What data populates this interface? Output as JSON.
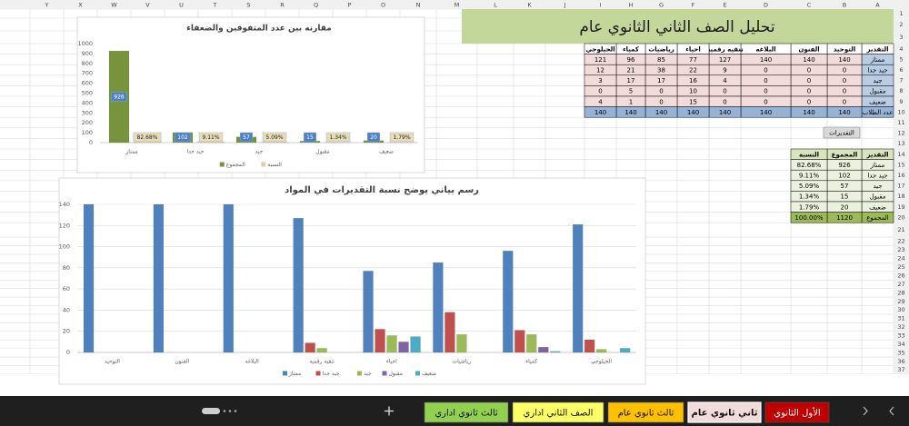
{
  "column_letters": [
    "A",
    "B",
    "C",
    "D",
    "E",
    "F",
    "G",
    "H",
    "I",
    "J",
    "K",
    "L",
    "M",
    "N",
    "O",
    "P",
    "Q",
    "R",
    "S",
    "T",
    "U",
    "V",
    "W",
    "X",
    "Y"
  ],
  "row_numbers": [
    1,
    2,
    3,
    4,
    5,
    6,
    7,
    8,
    9,
    10,
    11,
    12,
    13,
    14,
    15,
    16,
    17,
    18,
    19,
    20,
    21,
    22,
    23,
    24,
    25,
    26,
    27,
    28,
    29,
    30,
    31,
    32,
    33,
    34,
    35,
    36,
    37
  ],
  "title": "تحليل الصف الثاني الثانوي عام",
  "main_table": {
    "header": [
      "التقدير",
      "التوحيد",
      "الفنون",
      "البلاغه",
      "تنقيه رقميه",
      "احياء",
      "رياضيات",
      "كمياء",
      "الجيلوجي"
    ],
    "rows": [
      [
        "ممتاز",
        140,
        140,
        140,
        127,
        77,
        85,
        96,
        121
      ],
      [
        "جيد جدا",
        0,
        0,
        0,
        9,
        22,
        38,
        21,
        12
      ],
      [
        "جيد",
        0,
        0,
        0,
        4,
        16,
        17,
        17,
        3
      ],
      [
        "مقبول",
        0,
        0,
        0,
        0,
        10,
        0,
        5,
        0
      ],
      [
        "ضعيف",
        0,
        0,
        0,
        0,
        15,
        0,
        1,
        4
      ],
      [
        "عدد الطلاب",
        140,
        140,
        140,
        140,
        140,
        140,
        140,
        140
      ]
    ]
  },
  "button": "التقديرات",
  "summary_table": {
    "header": [
      "التقدير",
      "المجموع",
      "النسبة"
    ],
    "rows": [
      [
        "ممتاز",
        926,
        "82.68%"
      ],
      [
        "جيد جدا",
        102,
        "9.11%"
      ],
      [
        "جيد",
        57,
        "5.09%"
      ],
      [
        "مقبول",
        15,
        "1.34%"
      ],
      [
        "ضعيف",
        20,
        "1.79%"
      ],
      [
        "المجموع",
        1120,
        "100.00%"
      ]
    ]
  },
  "chart_data": [
    {
      "type": "bar",
      "title": "مقارنه بين عدد المتفوقين والضعفاء",
      "categories": [
        "ممتاز",
        "جيد جدا",
        "جيد",
        "مقبول",
        "ضعيف"
      ],
      "series": [
        {
          "name": "المجموع",
          "color": "#77933c",
          "values": [
            926,
            102,
            57,
            15,
            20
          ]
        },
        {
          "name": "النسبة",
          "color": "#ddd0a6",
          "values": [
            82.68,
            9.11,
            5.09,
            1.34,
            1.79
          ],
          "value_labels": [
            "82.68%",
            "9.11%",
            "5.09%",
            "1.34%",
            "1.79%"
          ]
        }
      ],
      "ylim": [
        0,
        1000
      ],
      "yticks": [
        0,
        100,
        200,
        300,
        400,
        500,
        600,
        700,
        800,
        900,
        1000
      ],
      "grid": false,
      "data_labels": true,
      "legend": "bottom"
    },
    {
      "type": "bar",
      "title": "رسم بياني يوضح نسبة التقديرات في المواد",
      "categories": [
        "التوحيد",
        "الفنون",
        "البلاغه",
        "تنقيه رقميه",
        "احياء",
        "رياضيات",
        "كمياء",
        "الجيلوجي"
      ],
      "series": [
        {
          "name": "ممتاز",
          "color": "#4f81bd",
          "values": [
            140,
            140,
            140,
            127,
            77,
            85,
            96,
            121
          ]
        },
        {
          "name": "جيد جدا",
          "color": "#c0504d",
          "values": [
            0,
            0,
            0,
            9,
            22,
            38,
            21,
            12
          ]
        },
        {
          "name": "جيد",
          "color": "#9bbb59",
          "values": [
            0,
            0,
            0,
            4,
            16,
            17,
            17,
            3
          ]
        },
        {
          "name": "مقبول",
          "color": "#8064a2",
          "values": [
            0,
            0,
            0,
            0,
            10,
            0,
            5,
            0
          ]
        },
        {
          "name": "ضعيف",
          "color": "#4bacc6",
          "values": [
            0,
            0,
            0,
            0,
            15,
            0,
            1,
            4
          ]
        }
      ],
      "ylim": [
        0,
        140
      ],
      "yticks": [
        0,
        20,
        40,
        60,
        80,
        100,
        120,
        140
      ],
      "grid": true,
      "data_labels": false,
      "legend": "bottom"
    }
  ],
  "sheet_tabs": [
    {
      "label": "الأول الثانوي",
      "color": "#c00000"
    },
    {
      "label": "ثاني ثانوي عام",
      "color": "#f2dcdb",
      "active": true
    },
    {
      "label": "ثالث ثانوي عام",
      "color": "#ffc000"
    },
    {
      "label": "الصف الثاني اداري",
      "color": "#ffff66"
    },
    {
      "label": "ثالث ثانوي اداري",
      "color": "#92d050"
    }
  ]
}
